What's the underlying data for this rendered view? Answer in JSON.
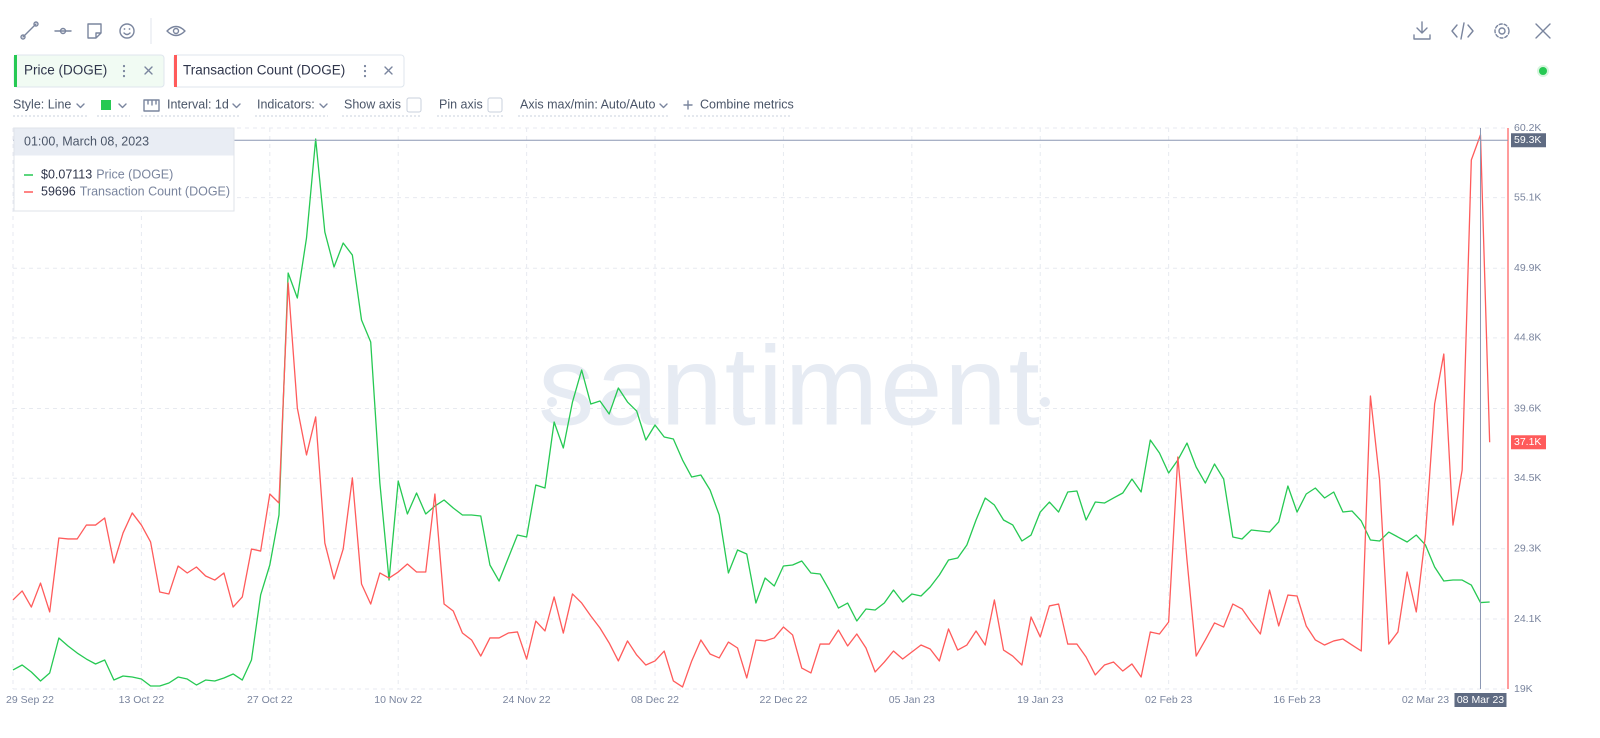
{
  "controls": {
    "style": "Style: Line",
    "interval": "Interval: 1d",
    "indicators": "Indicators:",
    "show_axis": "Show axis",
    "pin_axis": "Pin axis",
    "axis_minmax": "Axis max/min: Auto/Auto",
    "combine": "Combine metrics"
  },
  "chart_data": {
    "type": "line",
    "watermark": "santiment",
    "grid": true,
    "x": [
      "2022-09-29",
      "2022-09-30",
      "2022-10-01",
      "2022-10-02",
      "2022-10-03",
      "2022-10-04",
      "2022-10-05",
      "2022-10-06",
      "2022-10-07",
      "2022-10-08",
      "2022-10-09",
      "2022-10-10",
      "2022-10-11",
      "2022-10-12",
      "2022-10-13",
      "2022-10-14",
      "2022-10-15",
      "2022-10-16",
      "2022-10-17",
      "2022-10-18",
      "2022-10-19",
      "2022-10-20",
      "2022-10-21",
      "2022-10-22",
      "2022-10-23",
      "2022-10-24",
      "2022-10-25",
      "2022-10-26",
      "2022-10-27",
      "2022-10-28",
      "2022-10-29",
      "2022-10-30",
      "2022-10-31",
      "2022-11-01",
      "2022-11-02",
      "2022-11-03",
      "2022-11-04",
      "2022-11-05",
      "2022-11-06",
      "2022-11-07",
      "2022-11-08",
      "2022-11-09",
      "2022-11-10",
      "2022-11-11",
      "2022-11-12",
      "2022-11-13",
      "2022-11-14",
      "2022-11-15",
      "2022-11-16",
      "2022-11-17",
      "2022-11-18",
      "2022-11-19",
      "2022-11-20",
      "2022-11-21",
      "2022-11-22",
      "2022-11-23",
      "2022-11-24",
      "2022-11-25",
      "2022-11-26",
      "2022-11-27",
      "2022-11-28",
      "2022-11-29",
      "2022-11-30",
      "2022-12-01",
      "2022-12-02",
      "2022-12-03",
      "2022-12-04",
      "2022-12-05",
      "2022-12-06",
      "2022-12-07",
      "2022-12-08",
      "2022-12-09",
      "2022-12-10",
      "2022-12-11",
      "2022-12-12",
      "2022-12-13",
      "2022-12-14",
      "2022-12-15",
      "2022-12-16",
      "2022-12-17",
      "2022-12-18",
      "2022-12-19",
      "2022-12-20",
      "2022-12-21",
      "2022-12-22",
      "2022-12-23",
      "2022-12-24",
      "2022-12-25",
      "2022-12-26",
      "2022-12-27",
      "2022-12-28",
      "2022-12-29",
      "2022-12-30",
      "2022-12-31",
      "2023-01-01",
      "2023-01-02",
      "2023-01-03",
      "2023-01-04",
      "2023-01-05",
      "2023-01-06",
      "2023-01-07",
      "2023-01-08",
      "2023-01-09",
      "2023-01-10",
      "2023-01-11",
      "2023-01-12",
      "2023-01-13",
      "2023-01-14",
      "2023-01-15",
      "2023-01-16",
      "2023-01-17",
      "2023-01-18",
      "2023-01-19",
      "2023-01-20",
      "2023-01-21",
      "2023-01-22",
      "2023-01-23",
      "2023-01-24",
      "2023-01-25",
      "2023-01-26",
      "2023-01-27",
      "2023-01-28",
      "2023-01-29",
      "2023-01-30",
      "2023-01-31",
      "2023-02-01",
      "2023-02-02",
      "2023-02-03",
      "2023-02-04",
      "2023-02-05",
      "2023-02-06",
      "2023-02-07",
      "2023-02-08",
      "2023-02-09",
      "2023-02-10",
      "2023-02-11",
      "2023-02-12",
      "2023-02-13",
      "2023-02-14",
      "2023-02-15",
      "2023-02-16",
      "2023-02-17",
      "2023-02-18",
      "2023-02-19",
      "2023-02-20",
      "2023-02-21",
      "2023-02-22",
      "2023-02-23",
      "2023-02-24",
      "2023-02-25",
      "2023-02-26",
      "2023-02-27",
      "2023-02-28",
      "2023-03-01",
      "2023-03-02",
      "2023-03-03",
      "2023-03-04",
      "2023-03-05",
      "2023-03-06",
      "2023-03-07",
      "2023-03-08",
      "2023-03-09"
    ],
    "xlim": [
      "2022-09-29",
      "2023-03-11"
    ],
    "xticks": [
      {
        "value": "2022-09-29",
        "label": "29 Sep 22"
      },
      {
        "value": "2022-10-13",
        "label": "13 Oct 22"
      },
      {
        "value": "2022-10-27",
        "label": "27 Oct 22"
      },
      {
        "value": "2022-11-10",
        "label": "10 Nov 22"
      },
      {
        "value": "2022-11-24",
        "label": "24 Nov 22"
      },
      {
        "value": "2022-12-08",
        "label": "08 Dec 22"
      },
      {
        "value": "2022-12-22",
        "label": "22 Dec 22"
      },
      {
        "value": "2023-01-05",
        "label": "05 Jan 23"
      },
      {
        "value": "2023-01-19",
        "label": "19 Jan 23"
      },
      {
        "value": "2023-02-02",
        "label": "02 Feb 23"
      },
      {
        "value": "2023-02-16",
        "label": "16 Feb 23"
      },
      {
        "value": "2023-03-02",
        "label": "02 Mar 23"
      }
    ],
    "ylim": [
      19000,
      60200
    ],
    "yticks": [
      {
        "value": 60200,
        "label": "60.2K"
      },
      {
        "value": 55090,
        "label": "55.1K"
      },
      {
        "value": 49900,
        "label": "49.9K"
      },
      {
        "value": 44790,
        "label": "44.8K"
      },
      {
        "value": 39600,
        "label": "39.6K"
      },
      {
        "value": 34480,
        "label": "34.5K"
      },
      {
        "value": 29300,
        "label": "29.3K"
      },
      {
        "value": 24140,
        "label": "24.1K"
      },
      {
        "value": 19000,
        "label": "19K"
      }
    ],
    "y2lim": [
      0.0564,
      0.152
    ],
    "series": [
      {
        "name": "Price (DOGE)",
        "color": "#26c953",
        "axis": "y2",
        "values": [
          0.05964,
          0.06049,
          0.0593,
          0.05776,
          0.05913,
          0.06509,
          0.06373,
          0.06253,
          0.06151,
          0.06066,
          0.06134,
          0.05793,
          0.05862,
          0.05844,
          0.0581,
          0.05691,
          0.05691,
          0.05742,
          0.05844,
          0.0581,
          0.05708,
          0.05793,
          0.05776,
          0.05827,
          0.05896,
          0.05793,
          0.06134,
          0.07242,
          0.07753,
          0.08605,
          0.12729,
          0.12303,
          0.13325,
          0.15012,
          0.13427,
          0.12831,
          0.1324,
          0.13035,
          0.11928,
          0.11553,
          0.0915,
          0.07497,
          0.09184,
          0.08622,
          0.0898,
          0.08622,
          0.08758,
          0.08861,
          0.08724,
          0.08605,
          0.08605,
          0.08588,
          0.07753,
          0.0748,
          0.07872,
          0.08264,
          0.0823,
          0.09116,
          0.09065,
          0.1019,
          0.09747,
          0.1053,
          0.11076,
          0.10496,
          0.10548,
          0.10326,
          0.10769,
          0.1053,
          0.10377,
          0.09883,
          0.10139,
          0.09934,
          0.099,
          0.09542,
          0.09252,
          0.09287,
          0.09031,
          0.08605,
          0.07617,
          0.08009,
          0.0794,
          0.07105,
          0.07531,
          0.07395,
          0.07736,
          0.07753,
          0.07821,
          0.07617,
          0.076,
          0.07327,
          0.0702,
          0.07105,
          0.06799,
          0.07003,
          0.06986,
          0.07105,
          0.07327,
          0.07122,
          0.07259,
          0.07225,
          0.07378,
          0.07583,
          0.07838,
          0.07872,
          0.08094,
          0.0852,
          0.08895,
          0.08775,
          0.0852,
          0.08435,
          0.08162,
          0.08264,
          0.08656,
          0.08826,
          0.08656,
          0.08997,
          0.09014,
          0.0852,
          0.08826,
          0.08809,
          0.08895,
          0.0898,
          0.09218,
          0.08997,
          0.09883,
          0.09661,
          0.09321,
          0.09542,
          0.09832,
          0.09423,
          0.0915,
          0.09474,
          0.09218,
          0.0823,
          0.08196,
          0.08349,
          0.08332,
          0.08315,
          0.08486,
          0.09099,
          0.08656,
          0.08963,
          0.09065,
          0.08895,
          0.08997,
          0.08656,
          0.08673,
          0.08503,
          0.08179,
          0.08162,
          0.08315,
          0.0823,
          0.08145,
          0.08264,
          0.08094,
          0.07719,
          0.0748,
          0.07497,
          0.07497,
          0.07412,
          0.07113,
          0.07122
        ]
      },
      {
        "name": "Transaction Count (DOGE)",
        "color": "#ff5b5b",
        "last_label": "37.1K",
        "values": [
          25540,
          26200,
          25020,
          26780,
          24660,
          30090,
          30020,
          30020,
          31040,
          31040,
          31560,
          28250,
          30460,
          31930,
          31040,
          29800,
          26120,
          25980,
          28030,
          27520,
          27960,
          27300,
          27000,
          27520,
          25020,
          25760,
          29280,
          29130,
          33320,
          32660,
          48820,
          39640,
          36190,
          38980,
          29720,
          27080,
          29280,
          34500,
          26710,
          25240,
          27520,
          27150,
          27590,
          28180,
          27590,
          27590,
          33320,
          25240,
          24730,
          23110,
          22600,
          21420,
          22750,
          22750,
          23110,
          23190,
          21200,
          23990,
          23260,
          25760,
          23110,
          25980,
          25320,
          24360,
          23480,
          22380,
          21060,
          22530,
          21500,
          20760,
          21060,
          21790,
          19590,
          19150,
          21060,
          22600,
          21570,
          21280,
          22450,
          22010,
          19810,
          22600,
          22530,
          22750,
          23550,
          22970,
          20540,
          20180,
          22300,
          22300,
          23330,
          22160,
          23040,
          22010,
          20250,
          20980,
          21790,
          21200,
          21720,
          22230,
          21940,
          21060,
          23410,
          21860,
          22230,
          23260,
          22230,
          25540,
          21860,
          21420,
          20760,
          24290,
          22820,
          25100,
          25240,
          22300,
          22300,
          21350,
          20030,
          20760,
          20980,
          20320,
          20840,
          19880,
          23190,
          23040,
          23920,
          36040,
          28470,
          21420,
          22600,
          23850,
          23550,
          25240,
          24880,
          23920,
          23040,
          26270,
          23630,
          25900,
          25830,
          23630,
          22600,
          22230,
          22530,
          22670,
          22230,
          21790,
          40520,
          34350,
          22300,
          23190,
          27590,
          24660,
          30310,
          39930,
          43600,
          31040,
          35080,
          57850,
          59696,
          37120
        ]
      }
    ],
    "hover": {
      "x": "2023-03-08",
      "x_label": "08 Mar 23",
      "y": 59300,
      "y_label": "59.3K"
    },
    "tooltip": {
      "title": "01:00, March 08, 2023",
      "values": [
        {
          "value": 0.07113,
          "label": "$0.07113"
        },
        59696
      ]
    }
  }
}
